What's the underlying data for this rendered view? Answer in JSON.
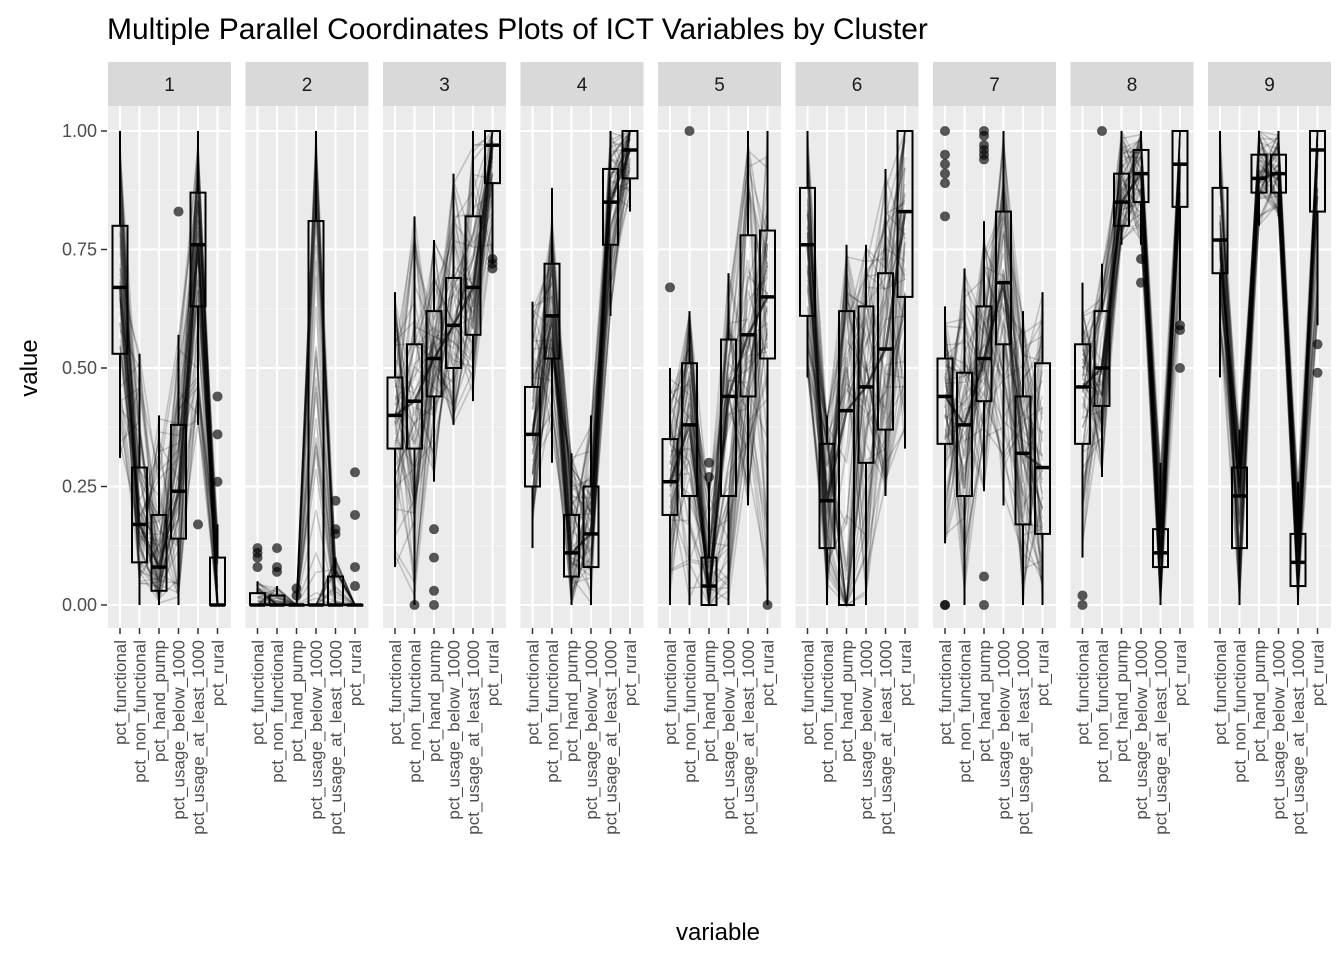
{
  "chart_data": {
    "type": "parallel-coordinates-with-boxplots",
    "title": "Multiple Parallel Coordinates Plots of ICT Variables by Cluster",
    "xlabel": "variable",
    "ylabel": "value",
    "ylim": [
      0,
      1
    ],
    "y_ticks": [
      "0.00",
      "0.25",
      "0.50",
      "0.75",
      "1.00"
    ],
    "y_tick_values": [
      0,
      0.25,
      0.5,
      0.75,
      1.0
    ],
    "variables": [
      "pct_functional",
      "pct_non_functional",
      "pct_hand_pump",
      "pct_usage_below_1000",
      "pct_usage_at_least_1000",
      "pct_rural"
    ],
    "grid": true,
    "panel_background": "#ebebeb",
    "strip_background": "#d9d9d9",
    "line_color": "#000000",
    "panels": [
      {
        "label": "1",
        "boxes": [
          [
            0.31,
            0.53,
            0.67,
            0.8,
            1.0
          ],
          [
            0.0,
            0.09,
            0.17,
            0.29,
            0.53
          ],
          [
            0.0,
            0.03,
            0.08,
            0.19,
            0.4
          ],
          [
            0.0,
            0.14,
            0.24,
            0.38,
            0.57
          ],
          [
            0.38,
            0.63,
            0.76,
            0.87,
            1.0
          ],
          [
            0.0,
            0.0,
            0.0,
            0.1,
            0.17
          ]
        ],
        "outliers": [
          [],
          [],
          [],
          [
            0.83
          ],
          [
            0.17
          ],
          [
            0.44,
            0.36,
            0.26
          ]
        ]
      },
      {
        "label": "2",
        "boxes": [
          [
            0,
            0,
            0,
            0.025,
            0.05
          ],
          [
            0,
            0,
            0,
            0.02,
            0.04
          ],
          [
            0,
            0,
            0,
            0,
            0
          ],
          [
            0,
            0,
            0,
            0.81,
            1.0
          ],
          [
            0,
            0,
            0,
            0.06,
            0.1
          ],
          [
            0,
            0,
            0,
            0,
            0
          ]
        ],
        "outliers": [
          [
            0.12,
            0.1,
            0.08,
            0.11
          ],
          [
            0.12,
            0.08,
            0.07
          ],
          [
            0.035,
            0.02
          ],
          [],
          [
            0.22,
            0.16,
            0.15
          ],
          [
            0.28,
            0.19,
            0.08,
            0.04
          ]
        ]
      },
      {
        "label": "3",
        "boxes": [
          [
            0.08,
            0.33,
            0.4,
            0.48,
            0.66
          ],
          [
            0.0,
            0.33,
            0.43,
            0.55,
            0.82
          ],
          [
            0.26,
            0.44,
            0.52,
            0.62,
            0.77
          ],
          [
            0.38,
            0.5,
            0.59,
            0.69,
            0.91
          ],
          [
            0.43,
            0.57,
            0.67,
            0.82,
            1.0
          ],
          [
            0.72,
            0.89,
            0.97,
            1.0,
            1.0
          ]
        ],
        "outliers": [
          [],
          [
            0.0
          ],
          [
            0.16,
            0.1,
            0.03,
            0.0
          ],
          [],
          [],
          [
            0.73,
            0.72,
            0.71
          ]
        ]
      },
      {
        "label": "4",
        "boxes": [
          [
            0.12,
            0.25,
            0.36,
            0.46,
            0.64
          ],
          [
            0.3,
            0.52,
            0.61,
            0.72,
            0.88
          ],
          [
            0.0,
            0.06,
            0.11,
            0.19,
            0.32
          ],
          [
            0.0,
            0.08,
            0.15,
            0.25,
            0.4
          ],
          [
            0.61,
            0.76,
            0.85,
            0.92,
            1.0
          ],
          [
            0.83,
            0.9,
            0.96,
            1.0,
            1.0
          ]
        ],
        "outliers": [
          [],
          [],
          [],
          [],
          [],
          []
        ]
      },
      {
        "label": "5",
        "boxes": [
          [
            0.0,
            0.19,
            0.26,
            0.35,
            0.5
          ],
          [
            0.0,
            0.23,
            0.38,
            0.51,
            0.62
          ],
          [
            0.0,
            0.0,
            0.04,
            0.1,
            0.26
          ],
          [
            0.0,
            0.23,
            0.44,
            0.56,
            0.7
          ],
          [
            0.21,
            0.44,
            0.57,
            0.78,
            1.0
          ],
          [
            0.0,
            0.52,
            0.65,
            0.79,
            1.0
          ]
        ],
        "outliers": [
          [
            0.67
          ],
          [
            1.0
          ],
          [
            0.3,
            0.27
          ],
          [],
          [],
          [
            0.0
          ]
        ]
      },
      {
        "label": "6",
        "boxes": [
          [
            0.48,
            0.61,
            0.76,
            0.88,
            1.0
          ],
          [
            0.0,
            0.12,
            0.22,
            0.34,
            0.4
          ],
          [
            0.0,
            0.0,
            0.41,
            0.62,
            0.76
          ],
          [
            0.0,
            0.3,
            0.46,
            0.63,
            0.76
          ],
          [
            0.23,
            0.37,
            0.54,
            0.7,
            0.92
          ],
          [
            0.33,
            0.65,
            0.83,
            1.0,
            1.0
          ]
        ],
        "outliers": [
          [],
          [],
          [],
          [],
          [],
          []
        ]
      },
      {
        "label": "7",
        "boxes": [
          [
            0.13,
            0.34,
            0.44,
            0.52,
            0.63
          ],
          [
            0.0,
            0.23,
            0.38,
            0.49,
            0.71
          ],
          [
            0.24,
            0.43,
            0.52,
            0.63,
            0.81
          ],
          [
            0.21,
            0.55,
            0.68,
            0.83,
            1.0
          ],
          [
            0.0,
            0.17,
            0.32,
            0.44,
            0.62
          ],
          [
            0.0,
            0.15,
            0.29,
            0.51,
            0.66
          ]
        ],
        "outliers": [
          [
            1.0,
            0.95,
            0.93,
            0.91,
            0.89,
            0.82,
            0.0,
            0.0
          ],
          [],
          [
            1.0,
            0.99,
            0.97,
            0.96,
            0.95,
            0.94,
            0.06,
            0.0
          ],
          [],
          [],
          []
        ]
      },
      {
        "label": "8",
        "boxes": [
          [
            0.1,
            0.34,
            0.46,
            0.55,
            0.68
          ],
          [
            0.27,
            0.42,
            0.5,
            0.62,
            0.72
          ],
          [
            0.76,
            0.8,
            0.85,
            0.91,
            1.0
          ],
          [
            0.76,
            0.85,
            0.91,
            0.96,
            1.0
          ],
          [
            0.0,
            0.08,
            0.11,
            0.16,
            0.3
          ],
          [
            0.6,
            0.84,
            0.93,
            1.0,
            1.0
          ]
        ],
        "outliers": [
          [
            0.02,
            0.0
          ],
          [
            1.0
          ],
          [],
          [
            0.73,
            0.68
          ],
          [],
          [
            0.59,
            0.58,
            0.5
          ]
        ]
      },
      {
        "label": "9",
        "boxes": [
          [
            0.48,
            0.7,
            0.77,
            0.88,
            1.0
          ],
          [
            0.0,
            0.12,
            0.23,
            0.29,
            0.37
          ],
          [
            0.8,
            0.87,
            0.9,
            0.95,
            1.0
          ],
          [
            0.82,
            0.87,
            0.91,
            0.95,
            1.0
          ],
          [
            0.0,
            0.04,
            0.09,
            0.15,
            0.26
          ],
          [
            0.59,
            0.83,
            0.96,
            1.0,
            1.0
          ]
        ],
        "outliers": [
          [],
          [],
          [],
          [],
          [],
          [
            0.55,
            0.49
          ]
        ]
      }
    ]
  }
}
